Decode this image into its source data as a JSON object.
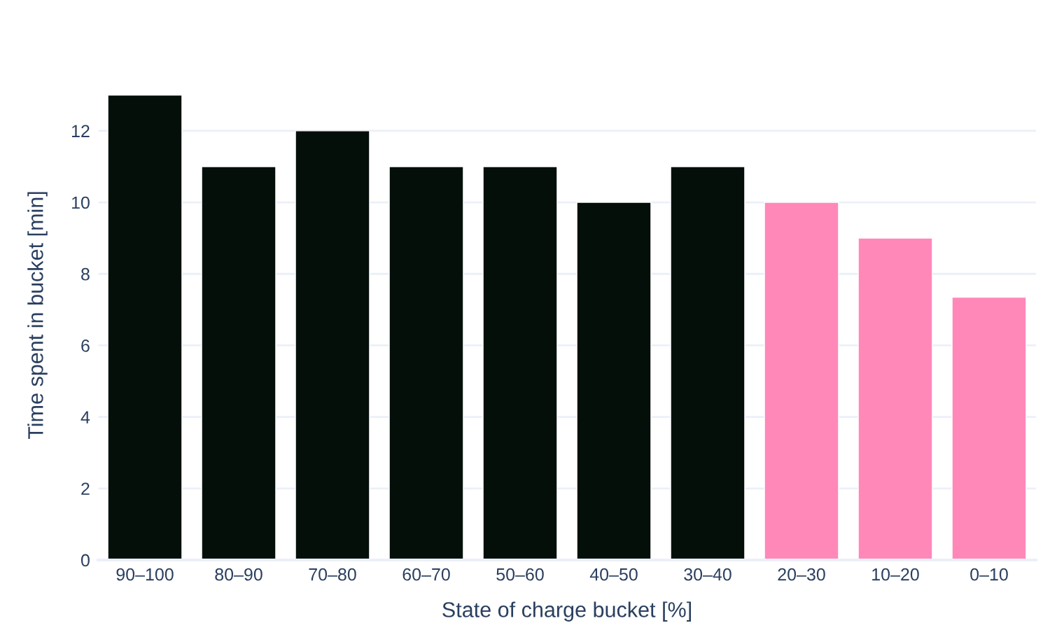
{
  "chart_data": {
    "type": "bar",
    "xlabel": "State of charge bucket [%]",
    "ylabel": "Time spent in bucket [min]",
    "categories": [
      "90–100",
      "80–90",
      "70–80",
      "60–70",
      "50–60",
      "40–50",
      "30–40",
      "20–30",
      "10–20",
      "0–10"
    ],
    "values": [
      13,
      11,
      12,
      11,
      11,
      10,
      11,
      10,
      9,
      7.35
    ],
    "colors": [
      "#050f0a",
      "#050f0a",
      "#050f0a",
      "#050f0a",
      "#050f0a",
      "#050f0a",
      "#050f0a",
      "#ff88b9",
      "#ff88b9",
      "#ff88b9"
    ],
    "ylim": [
      0,
      13.7
    ],
    "yticks": [
      0,
      2,
      4,
      6,
      8,
      10,
      12
    ],
    "grid": "y"
  }
}
